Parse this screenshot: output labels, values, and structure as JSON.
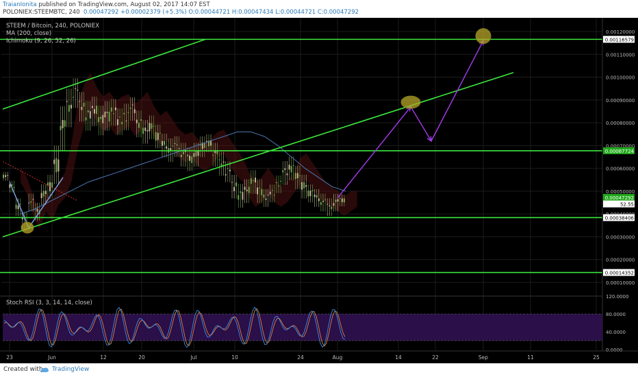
{
  "header": {
    "author": "TraianIonita",
    "published": "published on TradingView.com, August 02, 2017 14:07 EST",
    "symbol": "POLONIEX:STEEMBTC, 240",
    "values": "0.00047292 +0.00002379 (+5.3%) O:0.00044721 H:0.00047434 L:0.00044721 C:0.00047292"
  },
  "legend": {
    "line1": "STEEM / Bitcoin, 240, POLONIEX",
    "line2": "MA (200, close)",
    "line3": "Ichimoku (9, 26, 52, 26)"
  },
  "rsi_label": "Stoch RSI (3, 3, 14, 14, close)",
  "footer": {
    "created": "Created with",
    "brand": "TradingView"
  },
  "colors": {
    "background": "#000000",
    "channel_green": "#3de83d",
    "arrow_purple": "#a53cf0",
    "ellipse_yellow": "#b5a62a",
    "ma_blue": "#4a78b0",
    "rsi_band": "#2a0f48",
    "rsi_k": "#3a8ee6",
    "rsi_d": "#e0803a",
    "candle_up": "#6fa84c",
    "candle_down": "#c9b79a",
    "cloud_red": "#5a1414",
    "price_box": "#20a81a"
  },
  "chart_data": {
    "type": "candlestick",
    "title": "STEEM / Bitcoin, 240, POLONIEX",
    "price_axis": {
      "ticks": [
        "0.00120000",
        "0.00110000",
        "0.00100000",
        "0.00090000",
        "0.00080000",
        "0.00070000",
        "0.00060000",
        "0.00050000",
        "0.00040000",
        "0.00030000",
        "0.00020000",
        "0.00010000"
      ],
      "highlighted": [
        {
          "label": "0.00116579",
          "value": 0.00116579,
          "box": "#ffffff",
          "fg": "#000000"
        },
        {
          "label": "0.00067724",
          "value": 0.00067724,
          "box": "#20a81a",
          "fg": "#ffffff"
        },
        {
          "label": "0.00047292",
          "value": 0.00047292,
          "box": "#20a81a",
          "fg": "#ffffff"
        },
        {
          "label": "52.55",
          "value": 0.000444,
          "box": "#ffffff",
          "fg": "#000000"
        },
        {
          "label": "0.00038406",
          "value": 0.00038406,
          "box": "#ffffff",
          "fg": "#000000"
        },
        {
          "label": "0.00014352",
          "value": 0.00014352,
          "box": "#ffffff",
          "fg": "#000000"
        }
      ]
    },
    "horizontal_levels": [
      0.00116579,
      0.00067724,
      0.00038406,
      0.00014352
    ],
    "time_axis": [
      "23",
      "Jun",
      "12",
      "20",
      "Jul",
      "10",
      "24",
      "Aug",
      "14",
      "22",
      "Sep",
      "11",
      "25"
    ],
    "rsi_axis": [
      "120.0000",
      "80.0000",
      "40.0000",
      "0.0000"
    ],
    "rsi_band": [
      20,
      80
    ],
    "ohlc_last": {
      "open": 0.00044721,
      "high": 0.00047434,
      "low": 0.00044721,
      "close": 0.00047292,
      "change": 2.379e-05,
      "change_pct": 5.3
    },
    "price_path": [
      [
        0.00055,
        0.00058
      ],
      [
        0.0005,
        0.00054
      ],
      [
        0.0004,
        0.00046
      ],
      [
        0.00034,
        0.0004
      ],
      [
        0.00042,
        0.00048
      ],
      [
        0.00038,
        0.00044
      ],
      [
        0.00045,
        0.00052
      ],
      [
        0.00048,
        0.00056
      ],
      [
        0.00055,
        0.00068
      ],
      [
        0.0007,
        0.00085
      ],
      [
        0.0008,
        0.00093
      ],
      [
        0.00088,
        0.00098
      ],
      [
        0.00082,
        0.00092
      ],
      [
        0.00078,
        0.00088
      ],
      [
        0.0008,
        0.0009
      ],
      [
        0.00076,
        0.00086
      ],
      [
        0.00078,
        0.00088
      ],
      [
        0.0008,
        0.00089
      ],
      [
        0.00076,
        0.00085
      ],
      [
        0.00078,
        0.00087
      ],
      [
        0.00082,
        0.0009
      ],
      [
        0.00075,
        0.00084
      ],
      [
        0.00072,
        0.0008
      ],
      [
        0.00074,
        0.00082
      ],
      [
        0.0007,
        0.00078
      ],
      [
        0.00066,
        0.00074
      ],
      [
        0.00064,
        0.00072
      ],
      [
        0.00066,
        0.00073
      ],
      [
        0.00062,
        0.0007
      ],
      [
        0.0006,
        0.00068
      ],
      [
        0.00062,
        0.0007
      ],
      [
        0.00066,
        0.00073
      ],
      [
        0.00068,
        0.00074
      ],
      [
        0.00062,
        0.0007
      ],
      [
        0.00058,
        0.00066
      ],
      [
        0.00055,
        0.00062
      ],
      [
        0.00048,
        0.00056
      ],
      [
        0.00044,
        0.00052
      ],
      [
        0.00046,
        0.00054
      ],
      [
        0.0005,
        0.00058
      ],
      [
        0.00046,
        0.00054
      ],
      [
        0.00044,
        0.0005
      ],
      [
        0.00046,
        0.00052
      ],
      [
        0.0005,
        0.00056
      ],
      [
        0.00054,
        0.00062
      ],
      [
        0.00056,
        0.00064
      ],
      [
        0.00052,
        0.0006
      ],
      [
        0.00048,
        0.00056
      ],
      [
        0.00046,
        0.00052
      ],
      [
        0.00044,
        0.0005
      ],
      [
        0.00042,
        0.00048
      ],
      [
        0.0004,
        0.00046
      ],
      [
        0.00042,
        0.00048
      ],
      [
        0.00044,
        0.00048
      ]
    ],
    "ma200_path": [
      0.0004,
      0.00042,
      0.00045,
      0.00048,
      0.00051,
      0.00054,
      0.00056,
      0.00058,
      0.0006,
      0.00062,
      0.00064,
      0.00066,
      0.00068,
      0.0007,
      0.00072,
      0.00074,
      0.00076,
      0.00076,
      0.00074,
      0.0007,
      0.00065,
      0.0006,
      0.00056,
      0.00052,
      0.0005
    ],
    "channel_lines": [
      {
        "name": "upper",
        "from": {
          "t": "start",
          "p": 0.00086
        },
        "to": {
          "t": "Jun",
          "p": 0.001
        },
        "extend_to": {
          "p": 0.00116579
        }
      },
      {
        "name": "lower",
        "from": {
          "t": "start",
          "p": 0.0003
        },
        "to": {
          "t": "Sep+",
          "p": 0.00102
        }
      }
    ],
    "projection_path": [
      {
        "t": "Aug",
        "p": 0.00047
      },
      {
        "t": "16",
        "p": 0.00087
      },
      {
        "t": "20",
        "p": 0.00072
      },
      {
        "t": "Sep",
        "p": 0.00116
      }
    ],
    "highlight_points": [
      {
        "t": "26",
        "p": 0.00034
      },
      {
        "t": "16",
        "p": 0.00089
      },
      {
        "t": "Sep",
        "p": 0.00118
      }
    ]
  }
}
